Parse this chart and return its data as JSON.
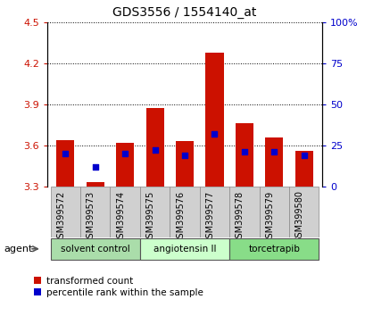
{
  "title": "GDS3556 / 1554140_at",
  "samples": [
    "GSM399572",
    "GSM399573",
    "GSM399574",
    "GSM399575",
    "GSM399576",
    "GSM399577",
    "GSM399578",
    "GSM399579",
    "GSM399580"
  ],
  "red_values": [
    3.64,
    3.33,
    3.62,
    3.875,
    3.63,
    4.28,
    3.76,
    3.66,
    3.56
  ],
  "blue_values_pct": [
    20,
    12,
    20,
    22,
    19,
    32,
    21,
    21,
    19
  ],
  "y_min": 3.3,
  "y_max": 4.5,
  "y_ticks": [
    3.3,
    3.6,
    3.9,
    4.2,
    4.5
  ],
  "y_right_ticks": [
    0,
    25,
    50,
    75,
    100
  ],
  "groups": [
    {
      "label": "solvent control",
      "start": 0,
      "end": 3,
      "color": "#aaddaa"
    },
    {
      "label": "angiotensin II",
      "start": 3,
      "end": 6,
      "color": "#ccffcc"
    },
    {
      "label": "torcetrapib",
      "start": 6,
      "end": 9,
      "color": "#88dd88"
    }
  ],
  "bar_width": 0.6,
  "bar_color": "#cc1100",
  "blue_color": "#0000cc",
  "blue_square_size": 25,
  "agent_label": "agent",
  "legend_red": "transformed count",
  "legend_blue": "percentile rank within the sample",
  "tick_color_left": "#cc1100",
  "tick_color_right": "#0000cc",
  "background_color": "#ffffff",
  "plot_bg_color": "#ffffff",
  "grid_color": "#000000",
  "label_fontsize": 7,
  "title_fontsize": 10
}
